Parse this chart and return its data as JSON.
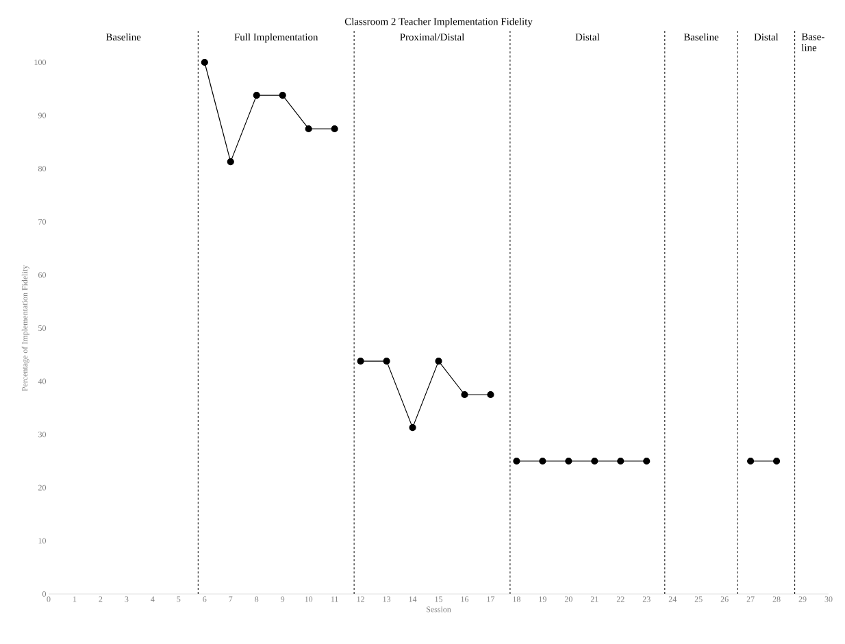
{
  "chart_data": {
    "type": "line",
    "title": "Classroom 2 Teacher Implementation Fidelity",
    "xlabel": "Session",
    "ylabel": "Percentage of Implementation Fidelity",
    "xlim": [
      0,
      30
    ],
    "xticks": [
      0,
      1,
      2,
      3,
      4,
      5,
      6,
      7,
      8,
      9,
      10,
      11,
      12,
      13,
      14,
      15,
      16,
      17,
      18,
      19,
      20,
      21,
      22,
      23,
      24,
      25,
      26,
      27,
      28,
      29,
      30
    ],
    "ylim": [
      0,
      100
    ],
    "yticks": [
      0,
      10,
      20,
      30,
      40,
      50,
      60,
      70,
      80,
      90,
      100
    ],
    "grid": false,
    "marker": "circle",
    "line_style": "solid",
    "series": [
      {
        "color": "#000000",
        "x": [
          6,
          7,
          8,
          9,
          10,
          11
        ],
        "values": [
          100,
          81.3,
          93.8,
          93.8,
          87.5,
          87.5
        ]
      },
      {
        "color": "#000000",
        "x": [
          12,
          13,
          14,
          15,
          16,
          17
        ],
        "values": [
          43.8,
          43.8,
          31.3,
          43.8,
          37.5,
          37.5
        ]
      },
      {
        "color": "#000000",
        "x": [
          18,
          19,
          20,
          21,
          22,
          23
        ],
        "values": [
          25,
          25,
          25,
          25,
          25,
          25
        ]
      },
      {
        "color": "#000000",
        "x": [
          27,
          28
        ],
        "values": [
          25,
          25
        ]
      }
    ],
    "ref_lines": [
      {
        "axis": "x",
        "value": 5.75,
        "line_style": "dashed",
        "color": "#000000"
      },
      {
        "axis": "x",
        "value": 11.75,
        "line_style": "dashed",
        "color": "#000000"
      },
      {
        "axis": "x",
        "value": 17.75,
        "line_style": "dashed",
        "color": "#000000"
      },
      {
        "axis": "x",
        "value": 23.7,
        "line_style": "dashed",
        "color": "#000000"
      },
      {
        "axis": "x",
        "value": 26.5,
        "line_style": "dashed",
        "color": "#000000"
      },
      {
        "axis": "x",
        "value": 28.7,
        "line_style": "dashed",
        "color": "#000000"
      }
    ],
    "annotations": [
      "Baseline",
      "Full Implementation",
      "Proximal/Distal",
      "Distal",
      "Baseline",
      "Distal",
      "Base-line"
    ]
  }
}
